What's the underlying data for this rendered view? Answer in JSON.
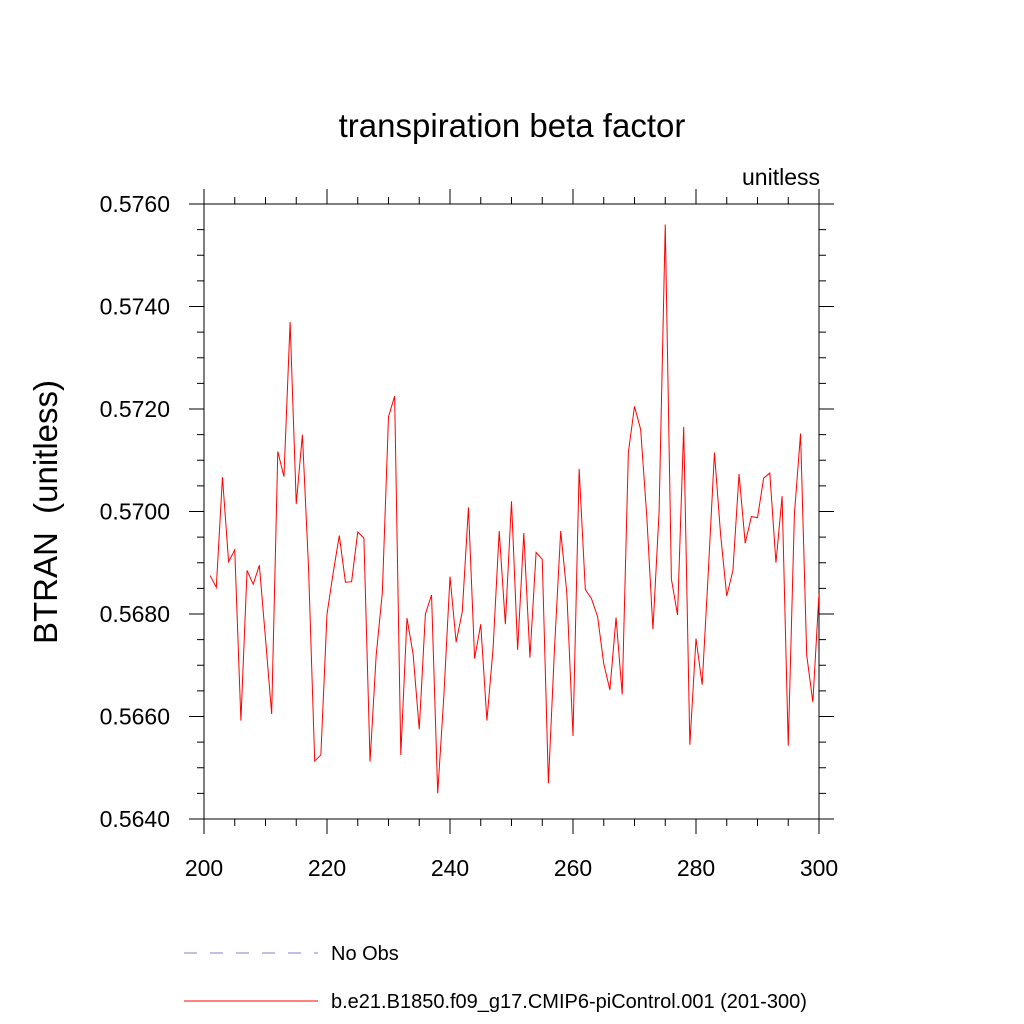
{
  "chart_data": {
    "type": "line",
    "title": "transpiration beta factor",
    "units_label": "unitless",
    "ylabel": "BTRAN  (unitless)",
    "xlabel": "",
    "xlim": [
      200,
      300
    ],
    "ylim": [
      0.564,
      0.576
    ],
    "x_ticks": [
      200,
      220,
      240,
      260,
      280,
      300
    ],
    "x_tick_labels": [
      "200",
      "220",
      "240",
      "260",
      "280",
      "300"
    ],
    "y_ticks": [
      0.564,
      0.566,
      0.568,
      0.57,
      0.572,
      0.574,
      0.576
    ],
    "y_tick_labels": [
      "0.5640",
      "0.5660",
      "0.5680",
      "0.5700",
      "0.5720",
      "0.5740",
      "0.5760"
    ],
    "grid": false,
    "legend_position": "bottom",
    "series": [
      {
        "name": "No Obs",
        "style": "dashed",
        "color": "#8080c8",
        "values": []
      },
      {
        "name": "b.e21.B1850.f09_g17.CMIP6-piControl.001 (201-300)",
        "style": "solid",
        "color": "#ff0000",
        "x": [
          201,
          202,
          203,
          204,
          205,
          206,
          207,
          208,
          209,
          210,
          211,
          212,
          213,
          214,
          215,
          216,
          217,
          218,
          219,
          220,
          221,
          222,
          223,
          224,
          225,
          226,
          227,
          228,
          229,
          230,
          231,
          232,
          233,
          234,
          235,
          236,
          237,
          238,
          239,
          240,
          241,
          242,
          243,
          244,
          245,
          246,
          247,
          248,
          249,
          250,
          251,
          252,
          253,
          254,
          255,
          256,
          257,
          258,
          259,
          260,
          261,
          262,
          263,
          264,
          265,
          266,
          267,
          268,
          269,
          270,
          271,
          272,
          273,
          274,
          275,
          276,
          277,
          278,
          279,
          280,
          281,
          282,
          283,
          284,
          285,
          286,
          287,
          288,
          289,
          290,
          291,
          292,
          293,
          294,
          295,
          296,
          297,
          298,
          299,
          300
        ],
        "values": [
          0.56875,
          0.56852,
          0.57067,
          0.56902,
          0.56925,
          0.56592,
          0.56885,
          0.56858,
          0.56895,
          0.56752,
          0.56605,
          0.57117,
          0.57068,
          0.5737,
          0.57015,
          0.5715,
          0.5689,
          0.56513,
          0.56525,
          0.568,
          0.5688,
          0.56953,
          0.56862,
          0.56863,
          0.5696,
          0.56948,
          0.56512,
          0.5672,
          0.56842,
          0.57185,
          0.57225,
          0.56525,
          0.56792,
          0.56722,
          0.56575,
          0.568,
          0.56837,
          0.5645,
          0.5664,
          0.56873,
          0.56745,
          0.56805,
          0.57008,
          0.56713,
          0.5678,
          0.56592,
          0.56732,
          0.56962,
          0.5678,
          0.5702,
          0.5673,
          0.56958,
          0.56715,
          0.5692,
          0.56907,
          0.5647,
          0.56735,
          0.56962,
          0.5684,
          0.56562,
          0.57083,
          0.56848,
          0.5683,
          0.56795,
          0.56703,
          0.56652,
          0.56793,
          0.56643,
          0.57115,
          0.57205,
          0.5716,
          0.5699,
          0.5677,
          0.57,
          0.5756,
          0.56868,
          0.56798,
          0.57165,
          0.56545,
          0.56752,
          0.56662,
          0.56882,
          0.57115,
          0.56955,
          0.56835,
          0.56885,
          0.57073,
          0.56938,
          0.5699,
          0.56988,
          0.57065,
          0.57075,
          0.569,
          0.5703,
          0.56543,
          0.56995,
          0.57152,
          0.5672,
          0.56628,
          0.5684
        ]
      }
    ]
  }
}
